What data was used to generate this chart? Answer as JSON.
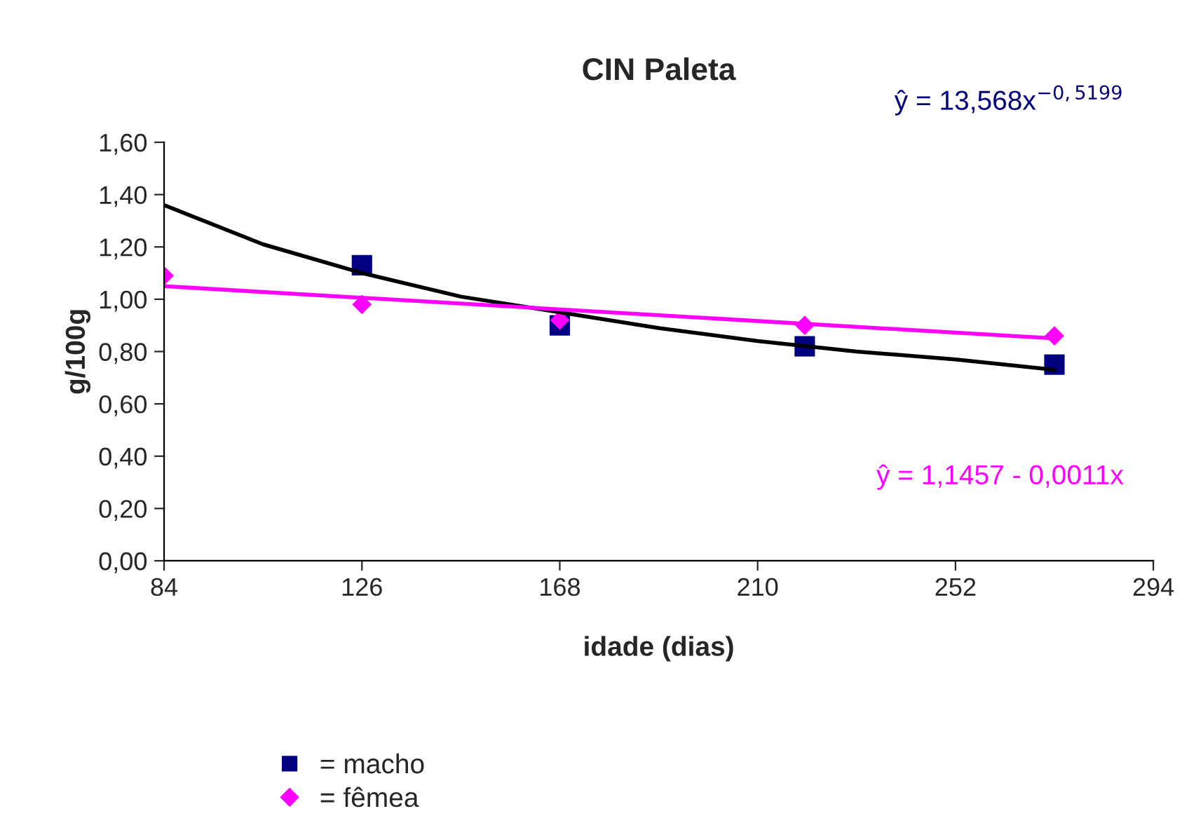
{
  "chart_data": {
    "type": "scatter",
    "title": "CIN Paleta",
    "xlabel": "idade (dias)",
    "ylabel": "g/100g",
    "xlim": [
      84,
      294
    ],
    "xticks": [
      84,
      126,
      168,
      210,
      252,
      294
    ],
    "ylim": [
      0,
      1.6
    ],
    "yticks": [
      {
        "value": 0,
        "label": "0,00"
      },
      {
        "value": 0.2,
        "label": "0,20"
      },
      {
        "value": 0.4,
        "label": "0,40"
      },
      {
        "value": 0.6,
        "label": "0,60"
      },
      {
        "value": 0.8,
        "label": "0,80"
      },
      {
        "value": 1.0,
        "label": "1,00"
      },
      {
        "value": 1.2,
        "label": "1,20"
      },
      {
        "value": 1.4,
        "label": "1,40"
      },
      {
        "value": 1.6,
        "label": "1,60"
      }
    ],
    "grid": false,
    "legend": "bottom left",
    "series": [
      {
        "name": "= macho",
        "marker": "square",
        "color": "#000080",
        "x": [
          126,
          168,
          220,
          273
        ],
        "values": [
          1.13,
          0.9,
          0.82,
          0.75
        ]
      },
      {
        "name": "= fêmea",
        "marker": "diamond",
        "color": "#ff00ff",
        "x": [
          84,
          126,
          168,
          220,
          273
        ],
        "values": [
          1.09,
          0.98,
          0.92,
          0.9,
          0.86
        ]
      },
      {
        "type": "line",
        "color": "#000000",
        "x": [
          84,
          105,
          126,
          147,
          168,
          189,
          210,
          231,
          252,
          273
        ],
        "values": [
          1.36,
          1.21,
          1.1,
          1.01,
          0.95,
          0.89,
          0.84,
          0.8,
          0.77,
          0.73
        ]
      },
      {
        "type": "line",
        "color": "#ff00ff",
        "x": [
          84,
          273
        ],
        "values": [
          1.05,
          0.85
        ]
      }
    ],
    "annotations": [
      "ŷ = 13,568x$^{−0,5199}$",
      "ŷ = 1,1457 - 0,0011x"
    ]
  }
}
